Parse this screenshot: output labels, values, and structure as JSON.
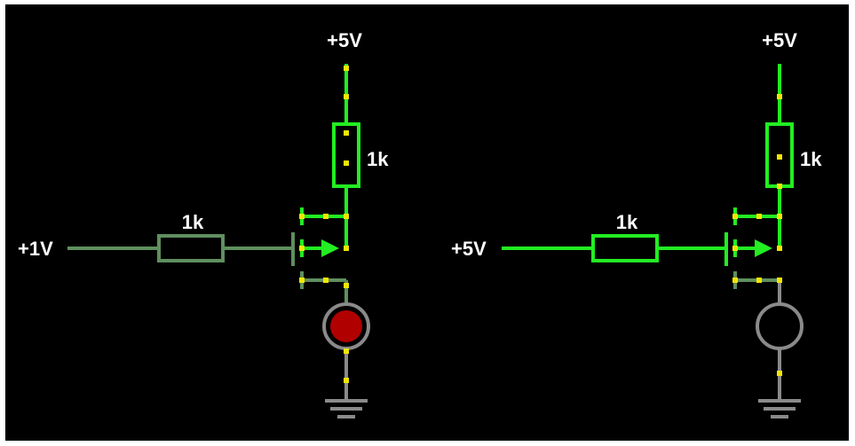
{
  "colors": {
    "background": "#000000",
    "wire_active": "#22ee22",
    "wire_inactive": "#5f8f5f",
    "node_dot": "#f2e600",
    "lamp_on_fill": "#b00000",
    "lamp_off_fill": "#000000",
    "lamp_ring": "#8a8a8a",
    "ground": "#8a8a8a",
    "label": "#ffffff"
  },
  "circuits": [
    {
      "supply_label": "+5V",
      "input_label": "+1V",
      "gate_resistor_label": "1k",
      "drain_resistor_label": "1k",
      "lamp_state": "on"
    },
    {
      "supply_label": "+5V",
      "input_label": "+5V",
      "gate_resistor_label": "1k",
      "drain_resistor_label": "1k",
      "lamp_state": "off"
    }
  ]
}
